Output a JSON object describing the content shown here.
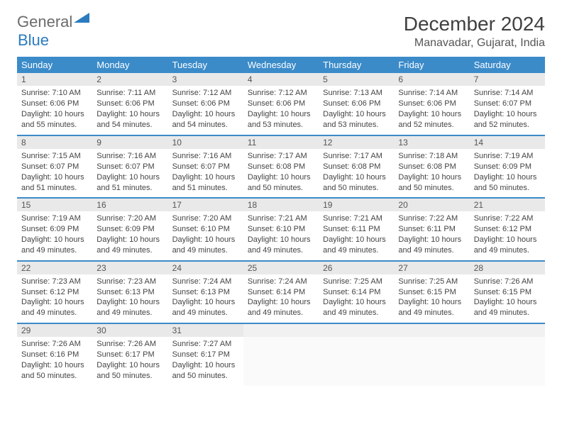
{
  "logo": {
    "gray": "General",
    "blue": "Blue",
    "tri_color": "#2b7bbf"
  },
  "title": "December 2024",
  "location": "Manavadar, Gujarat, India",
  "colors": {
    "header_bg": "#3b8bc9",
    "header_fg": "#ffffff",
    "daynum_bg": "#e9e9e9",
    "row_border": "#3b8bc9"
  },
  "day_headers": [
    "Sunday",
    "Monday",
    "Tuesday",
    "Wednesday",
    "Thursday",
    "Friday",
    "Saturday"
  ],
  "weeks": [
    [
      {
        "n": "1",
        "sr": "Sunrise: 7:10 AM",
        "ss": "Sunset: 6:06 PM",
        "dl": "Daylight: 10 hours and 55 minutes."
      },
      {
        "n": "2",
        "sr": "Sunrise: 7:11 AM",
        "ss": "Sunset: 6:06 PM",
        "dl": "Daylight: 10 hours and 54 minutes."
      },
      {
        "n": "3",
        "sr": "Sunrise: 7:12 AM",
        "ss": "Sunset: 6:06 PM",
        "dl": "Daylight: 10 hours and 54 minutes."
      },
      {
        "n": "4",
        "sr": "Sunrise: 7:12 AM",
        "ss": "Sunset: 6:06 PM",
        "dl": "Daylight: 10 hours and 53 minutes."
      },
      {
        "n": "5",
        "sr": "Sunrise: 7:13 AM",
        "ss": "Sunset: 6:06 PM",
        "dl": "Daylight: 10 hours and 53 minutes."
      },
      {
        "n": "6",
        "sr": "Sunrise: 7:14 AM",
        "ss": "Sunset: 6:06 PM",
        "dl": "Daylight: 10 hours and 52 minutes."
      },
      {
        "n": "7",
        "sr": "Sunrise: 7:14 AM",
        "ss": "Sunset: 6:07 PM",
        "dl": "Daylight: 10 hours and 52 minutes."
      }
    ],
    [
      {
        "n": "8",
        "sr": "Sunrise: 7:15 AM",
        "ss": "Sunset: 6:07 PM",
        "dl": "Daylight: 10 hours and 51 minutes."
      },
      {
        "n": "9",
        "sr": "Sunrise: 7:16 AM",
        "ss": "Sunset: 6:07 PM",
        "dl": "Daylight: 10 hours and 51 minutes."
      },
      {
        "n": "10",
        "sr": "Sunrise: 7:16 AM",
        "ss": "Sunset: 6:07 PM",
        "dl": "Daylight: 10 hours and 51 minutes."
      },
      {
        "n": "11",
        "sr": "Sunrise: 7:17 AM",
        "ss": "Sunset: 6:08 PM",
        "dl": "Daylight: 10 hours and 50 minutes."
      },
      {
        "n": "12",
        "sr": "Sunrise: 7:17 AM",
        "ss": "Sunset: 6:08 PM",
        "dl": "Daylight: 10 hours and 50 minutes."
      },
      {
        "n": "13",
        "sr": "Sunrise: 7:18 AM",
        "ss": "Sunset: 6:08 PM",
        "dl": "Daylight: 10 hours and 50 minutes."
      },
      {
        "n": "14",
        "sr": "Sunrise: 7:19 AM",
        "ss": "Sunset: 6:09 PM",
        "dl": "Daylight: 10 hours and 50 minutes."
      }
    ],
    [
      {
        "n": "15",
        "sr": "Sunrise: 7:19 AM",
        "ss": "Sunset: 6:09 PM",
        "dl": "Daylight: 10 hours and 49 minutes."
      },
      {
        "n": "16",
        "sr": "Sunrise: 7:20 AM",
        "ss": "Sunset: 6:09 PM",
        "dl": "Daylight: 10 hours and 49 minutes."
      },
      {
        "n": "17",
        "sr": "Sunrise: 7:20 AM",
        "ss": "Sunset: 6:10 PM",
        "dl": "Daylight: 10 hours and 49 minutes."
      },
      {
        "n": "18",
        "sr": "Sunrise: 7:21 AM",
        "ss": "Sunset: 6:10 PM",
        "dl": "Daylight: 10 hours and 49 minutes."
      },
      {
        "n": "19",
        "sr": "Sunrise: 7:21 AM",
        "ss": "Sunset: 6:11 PM",
        "dl": "Daylight: 10 hours and 49 minutes."
      },
      {
        "n": "20",
        "sr": "Sunrise: 7:22 AM",
        "ss": "Sunset: 6:11 PM",
        "dl": "Daylight: 10 hours and 49 minutes."
      },
      {
        "n": "21",
        "sr": "Sunrise: 7:22 AM",
        "ss": "Sunset: 6:12 PM",
        "dl": "Daylight: 10 hours and 49 minutes."
      }
    ],
    [
      {
        "n": "22",
        "sr": "Sunrise: 7:23 AM",
        "ss": "Sunset: 6:12 PM",
        "dl": "Daylight: 10 hours and 49 minutes."
      },
      {
        "n": "23",
        "sr": "Sunrise: 7:23 AM",
        "ss": "Sunset: 6:13 PM",
        "dl": "Daylight: 10 hours and 49 minutes."
      },
      {
        "n": "24",
        "sr": "Sunrise: 7:24 AM",
        "ss": "Sunset: 6:13 PM",
        "dl": "Daylight: 10 hours and 49 minutes."
      },
      {
        "n": "25",
        "sr": "Sunrise: 7:24 AM",
        "ss": "Sunset: 6:14 PM",
        "dl": "Daylight: 10 hours and 49 minutes."
      },
      {
        "n": "26",
        "sr": "Sunrise: 7:25 AM",
        "ss": "Sunset: 6:14 PM",
        "dl": "Daylight: 10 hours and 49 minutes."
      },
      {
        "n": "27",
        "sr": "Sunrise: 7:25 AM",
        "ss": "Sunset: 6:15 PM",
        "dl": "Daylight: 10 hours and 49 minutes."
      },
      {
        "n": "28",
        "sr": "Sunrise: 7:26 AM",
        "ss": "Sunset: 6:15 PM",
        "dl": "Daylight: 10 hours and 49 minutes."
      }
    ],
    [
      {
        "n": "29",
        "sr": "Sunrise: 7:26 AM",
        "ss": "Sunset: 6:16 PM",
        "dl": "Daylight: 10 hours and 50 minutes."
      },
      {
        "n": "30",
        "sr": "Sunrise: 7:26 AM",
        "ss": "Sunset: 6:17 PM",
        "dl": "Daylight: 10 hours and 50 minutes."
      },
      {
        "n": "31",
        "sr": "Sunrise: 7:27 AM",
        "ss": "Sunset: 6:17 PM",
        "dl": "Daylight: 10 hours and 50 minutes."
      },
      null,
      null,
      null,
      null
    ]
  ]
}
